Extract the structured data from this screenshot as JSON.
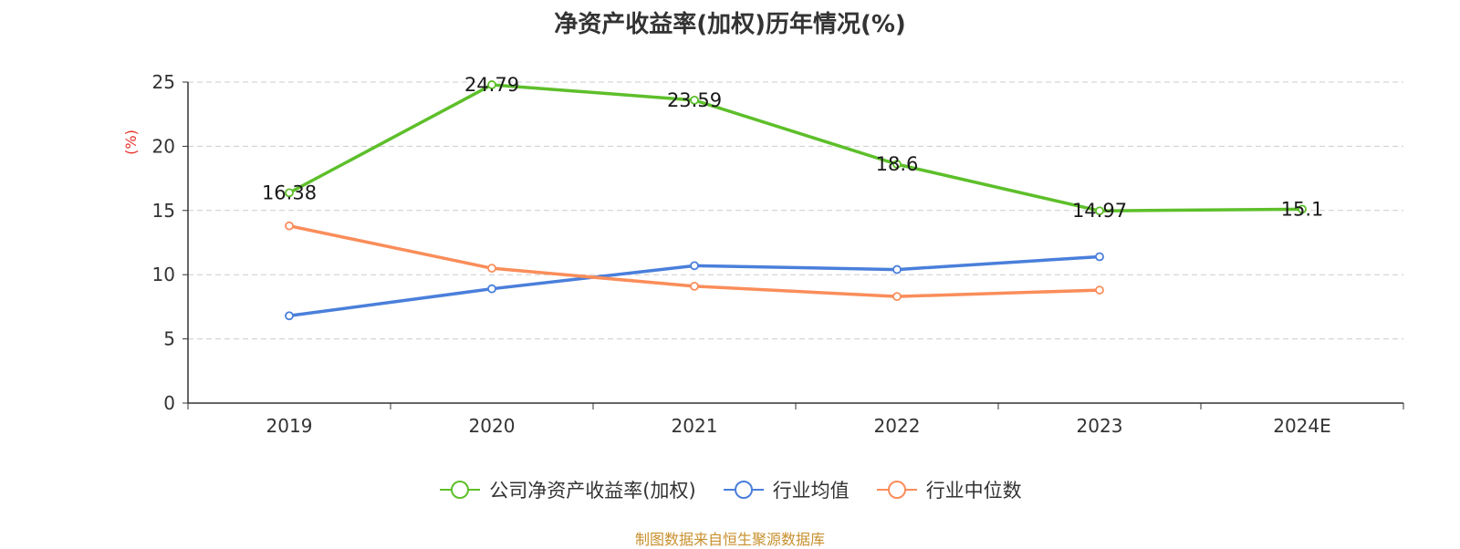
{
  "chart_data": {
    "type": "line",
    "title": "净资产收益率(加权)历年情况(%)",
    "ylabel": "(%)",
    "categories": [
      "2019",
      "2020",
      "2021",
      "2022",
      "2023",
      "2024E"
    ],
    "ylim": [
      0,
      25
    ],
    "yticks": [
      "0",
      "5",
      "10",
      "15",
      "20",
      "25"
    ],
    "grid": true,
    "legend_position": "bottom",
    "series": [
      {
        "name": "公司净资产收益率(加权)",
        "color": "#5dbf2a",
        "values": [
          16.38,
          24.79,
          23.59,
          18.6,
          14.97,
          15.1
        ],
        "labels": [
          "16.38",
          "24.79",
          "23.59",
          "18.6",
          "14.97",
          "15.1"
        ]
      },
      {
        "name": "行业均值",
        "color": "#4a7fdb",
        "values": [
          6.8,
          8.9,
          10.7,
          10.4,
          11.4,
          null
        ]
      },
      {
        "name": "行业中位数",
        "color": "#fa8d5a",
        "values": [
          13.8,
          10.5,
          9.1,
          8.3,
          8.8,
          null
        ]
      }
    ]
  },
  "source": "制图数据来自恒生聚源数据库"
}
